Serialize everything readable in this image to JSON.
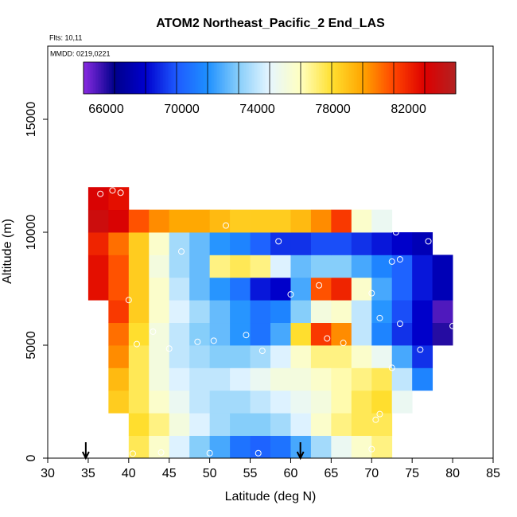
{
  "chart_data": {
    "type": "heatmap",
    "title": "ATOM2 Northeast_Pacific_2 End_LAS",
    "subtitle": "Flts: 10,11",
    "annotation": "MMDD: 0219,0221",
    "x_label": "Latitude (deg N)",
    "y_label": "Altitude (m)",
    "xlim": [
      30,
      85
    ],
    "xticks": [
      30,
      35,
      40,
      45,
      50,
      55,
      60,
      65,
      70,
      75,
      80,
      85
    ],
    "ylim": [
      0,
      18240
    ],
    "yticks": [
      0,
      5000,
      10000,
      15000
    ],
    "zlim": [
      64800,
      84500
    ],
    "zticks": [
      66000,
      70000,
      74000,
      78000,
      82000
    ],
    "colors": [
      "#8a2be2",
      "#00008b",
      "#0000cd",
      "#1e5aff",
      "#1e90ff",
      "#87cefa",
      "#e6f6ff",
      "#ffffc0",
      "#ffe030",
      "#ffa500",
      "#ff4500",
      "#dd0000",
      "#b22222"
    ],
    "lat_edges": [
      35,
      37.5,
      40,
      42.5,
      45,
      47.5,
      50,
      52.5,
      55,
      57.5,
      60,
      62.5,
      65,
      67.5,
      70,
      72.5,
      75,
      77.5,
      80
    ],
    "alt_edges": [
      0,
      1000,
      2000,
      3000,
      4000,
      5000,
      6000,
      7000,
      8000,
      9000,
      10000,
      11000,
      12000
    ],
    "z": [
      [
        null,
        null,
        77500,
        76000,
        74500,
        73000,
        72000,
        70500,
        70000,
        70500,
        72000,
        73500,
        75000,
        76000,
        77000,
        null,
        null,
        null
      ],
      [
        null,
        null,
        78000,
        77000,
        75500,
        74500,
        73500,
        73000,
        73000,
        73500,
        74500,
        76000,
        77000,
        77500,
        77500,
        null,
        null,
        null
      ],
      [
        null,
        78500,
        77500,
        76000,
        75000,
        74000,
        73500,
        73500,
        74000,
        74500,
        75000,
        75500,
        76500,
        77500,
        78000,
        75000,
        null,
        null
      ],
      [
        null,
        79000,
        77500,
        75500,
        74500,
        74000,
        74000,
        74500,
        75000,
        75500,
        75500,
        76000,
        76500,
        77000,
        77500,
        74000,
        71000,
        null
      ],
      [
        null,
        80000,
        77500,
        75500,
        74000,
        73500,
        73000,
        73000,
        73500,
        74500,
        76000,
        77000,
        77000,
        76000,
        75000,
        72000,
        69000,
        null
      ],
      [
        null,
        80500,
        78000,
        75500,
        74000,
        73000,
        72500,
        71500,
        70500,
        72000,
        78000,
        81500,
        80000,
        74000,
        71000,
        69000,
        68000,
        66000
      ],
      [
        null,
        81500,
        78500,
        76000,
        74500,
        73500,
        72500,
        71500,
        70500,
        71000,
        73000,
        75500,
        76000,
        74000,
        71500,
        69500,
        68000,
        65500
      ],
      [
        82500,
        81000,
        78500,
        76000,
        74000,
        72500,
        71500,
        70500,
        68500,
        68000,
        72000,
        81000,
        82000,
        76000,
        72000,
        70000,
        68500,
        67500
      ],
      [
        82500,
        81000,
        78500,
        75500,
        73500,
        72500,
        77000,
        77500,
        77000,
        74500,
        72500,
        73000,
        73000,
        72000,
        71000,
        70000,
        68500,
        67500
      ],
      [
        82000,
        80500,
        78500,
        76000,
        73500,
        72500,
        71500,
        71000,
        70000,
        69000,
        69000,
        69500,
        69500,
        69000,
        68500,
        68000,
        67500,
        null
      ],
      [
        83500,
        83000,
        81000,
        80000,
        79500,
        79500,
        79000,
        78500,
        78500,
        78500,
        79000,
        80000,
        81500,
        76000,
        75000,
        null,
        null,
        null
      ],
      [
        83000,
        82500,
        null,
        null,
        null,
        null,
        null,
        null,
        null,
        null,
        null,
        null,
        null,
        null,
        null,
        null,
        null,
        null
      ]
    ],
    "points": {
      "lat": [
        36.5,
        38,
        39,
        52,
        58.5,
        46.5,
        73,
        77,
        78,
        72.5,
        73.5,
        63.5,
        60,
        70,
        40,
        71,
        73.5,
        80,
        54.5,
        43,
        48.5,
        50.5,
        56.5,
        64.5,
        66.5,
        41,
        45,
        76,
        72.5,
        71,
        70.5,
        70,
        40.5,
        44,
        50,
        56
      ],
      "alt": [
        11700,
        11850,
        11750,
        10300,
        9600,
        9150,
        10000,
        9600,
        9600,
        8700,
        8800,
        7650,
        7250,
        7300,
        7000,
        6200,
        5950,
        5850,
        5450,
        5600,
        5150,
        5200,
        4750,
        5300,
        5100,
        5050,
        4850,
        4800,
        4000,
        1950,
        1700,
        400,
        200,
        250,
        220,
        220
      ]
    },
    "arrows_lat": [
      34.7,
      61.2
    ]
  }
}
